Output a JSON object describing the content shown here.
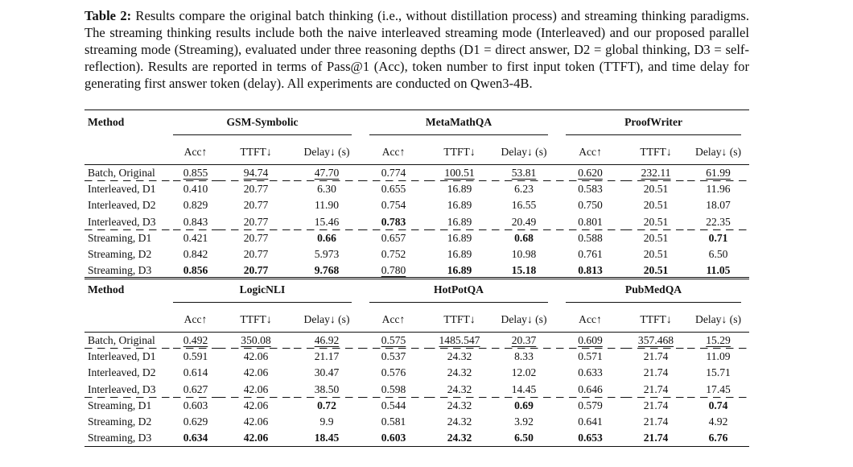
{
  "caption": {
    "label": "Table 2:",
    "text": " Results compare the original batch thinking (i.e., without distillation process) and streaming thinking paradigms. The streaming thinking results include both the naive interleaved streaming mode (Interleaved) and our proposed parallel streaming mode (Streaming), evaluated under three reasoning depths (D1 = direct answer, D2 = global thinking, D3 = self-reflection). Results are reported in terms of Pass@1 (Acc), token number to first input token (TTFT), and time delay for generating first answer token (delay). All experiments are conducted on Qwen3-4B."
  },
  "method_header": "Method",
  "metric_headers": [
    "Acc↑",
    "TTFT↓",
    "Delay↓ (s)"
  ],
  "tables": [
    {
      "datasets": [
        "GSM-Symbolic",
        "MetaMathQA",
        "ProofWriter"
      ],
      "rows": [
        {
          "method": "Batch, Original",
          "cells": [
            {
              "v": "0.855",
              "u": true
            },
            {
              "v": "94.74",
              "u": true
            },
            {
              "v": "47.70",
              "u": true
            },
            {
              "v": "0.774"
            },
            {
              "v": "100.51",
              "u": true
            },
            {
              "v": "53.81",
              "u": true
            },
            {
              "v": "0.620",
              "u": true
            },
            {
              "v": "232.11",
              "u": true
            },
            {
              "v": "61.99",
              "u": true
            }
          ]
        },
        {
          "method": "Interleaved, D1",
          "cells": [
            {
              "v": "0.410"
            },
            {
              "v": "20.77"
            },
            {
              "v": "6.30"
            },
            {
              "v": "0.655"
            },
            {
              "v": "16.89"
            },
            {
              "v": "6.23"
            },
            {
              "v": "0.583"
            },
            {
              "v": "20.51"
            },
            {
              "v": "11.96"
            }
          ]
        },
        {
          "method": "Interleaved, D2",
          "cells": [
            {
              "v": "0.829"
            },
            {
              "v": "20.77"
            },
            {
              "v": "11.90"
            },
            {
              "v": "0.754"
            },
            {
              "v": "16.89"
            },
            {
              "v": "16.55"
            },
            {
              "v": "0.750"
            },
            {
              "v": "20.51"
            },
            {
              "v": "18.07"
            }
          ]
        },
        {
          "method": "Interleaved, D3",
          "cells": [
            {
              "v": "0.843"
            },
            {
              "v": "20.77"
            },
            {
              "v": "15.46"
            },
            {
              "v": "0.783",
              "b": true
            },
            {
              "v": "16.89"
            },
            {
              "v": "20.49"
            },
            {
              "v": "0.801"
            },
            {
              "v": "20.51"
            },
            {
              "v": "22.35"
            }
          ]
        },
        {
          "method": "Streaming, D1",
          "cells": [
            {
              "v": "0.421"
            },
            {
              "v": "20.77"
            },
            {
              "v": "0.66",
              "b": true
            },
            {
              "v": "0.657"
            },
            {
              "v": "16.89"
            },
            {
              "v": "0.68",
              "b": true
            },
            {
              "v": "0.588"
            },
            {
              "v": "20.51"
            },
            {
              "v": "0.71",
              "b": true
            }
          ]
        },
        {
          "method": "Streaming, D2",
          "cells": [
            {
              "v": "0.842"
            },
            {
              "v": "20.77"
            },
            {
              "v": "5.973"
            },
            {
              "v": "0.752"
            },
            {
              "v": "16.89"
            },
            {
              "v": "10.98"
            },
            {
              "v": "0.761"
            },
            {
              "v": "20.51"
            },
            {
              "v": "6.50"
            }
          ]
        },
        {
          "method": "Streaming, D3",
          "cells": [
            {
              "v": "0.856",
              "b": true
            },
            {
              "v": "20.77",
              "b": true
            },
            {
              "v": "9.768",
              "b": true
            },
            {
              "v": "0.780",
              "u": true
            },
            {
              "v": "16.89",
              "b": true
            },
            {
              "v": "15.18",
              "b": true
            },
            {
              "v": "0.813",
              "b": true
            },
            {
              "v": "20.51",
              "b": true
            },
            {
              "v": "11.05",
              "b": true
            }
          ]
        }
      ]
    },
    {
      "datasets": [
        "LogicNLI",
        "HotPotQA",
        "PubMedQA"
      ],
      "rows": [
        {
          "method": "Batch, Original",
          "cells": [
            {
              "v": "0.492",
              "u": true
            },
            {
              "v": "350.08",
              "u": true
            },
            {
              "v": "46.92",
              "u": true
            },
            {
              "v": "0.575",
              "u": true
            },
            {
              "v": "1485.547",
              "u": true
            },
            {
              "v": "20.37",
              "u": true
            },
            {
              "v": "0.609",
              "u": true
            },
            {
              "v": "357.468",
              "u": true
            },
            {
              "v": "15.29",
              "u": true
            }
          ]
        },
        {
          "method": "Interleaved, D1",
          "cells": [
            {
              "v": "0.591"
            },
            {
              "v": "42.06"
            },
            {
              "v": "21.17"
            },
            {
              "v": "0.537"
            },
            {
              "v": "24.32"
            },
            {
              "v": "8.33"
            },
            {
              "v": "0.571"
            },
            {
              "v": "21.74"
            },
            {
              "v": "11.09"
            }
          ]
        },
        {
          "method": "Interleaved, D2",
          "cells": [
            {
              "v": "0.614"
            },
            {
              "v": "42.06"
            },
            {
              "v": "30.47"
            },
            {
              "v": "0.576"
            },
            {
              "v": "24.32"
            },
            {
              "v": "12.02"
            },
            {
              "v": "0.633"
            },
            {
              "v": "21.74"
            },
            {
              "v": "15.71"
            }
          ]
        },
        {
          "method": "Interleaved, D3",
          "cells": [
            {
              "v": "0.627"
            },
            {
              "v": "42.06"
            },
            {
              "v": "38.50"
            },
            {
              "v": "0.598"
            },
            {
              "v": "24.32"
            },
            {
              "v": "14.45"
            },
            {
              "v": "0.646"
            },
            {
              "v": "21.74"
            },
            {
              "v": "17.45"
            }
          ]
        },
        {
          "method": "Streaming, D1",
          "cells": [
            {
              "v": "0.603"
            },
            {
              "v": "42.06"
            },
            {
              "v": "0.72",
              "b": true
            },
            {
              "v": "0.544"
            },
            {
              "v": "24.32"
            },
            {
              "v": "0.69",
              "b": true
            },
            {
              "v": "0.579"
            },
            {
              "v": "21.74"
            },
            {
              "v": "0.74",
              "b": true
            }
          ]
        },
        {
          "method": "Streaming, D2",
          "cells": [
            {
              "v": "0.629"
            },
            {
              "v": "42.06"
            },
            {
              "v": "9.9"
            },
            {
              "v": "0.581"
            },
            {
              "v": "24.32"
            },
            {
              "v": "3.92"
            },
            {
              "v": "0.641"
            },
            {
              "v": "21.74"
            },
            {
              "v": "4.92"
            }
          ]
        },
        {
          "method": "Streaming, D3",
          "cells": [
            {
              "v": "0.634",
              "b": true
            },
            {
              "v": "42.06",
              "b": true
            },
            {
              "v": "18.45",
              "b": true
            },
            {
              "v": "0.603",
              "b": true
            },
            {
              "v": "24.32",
              "b": true
            },
            {
              "v": "6.50",
              "b": true
            },
            {
              "v": "0.653",
              "b": true
            },
            {
              "v": "21.74",
              "b": true
            },
            {
              "v": "6.76",
              "b": true
            }
          ]
        }
      ]
    }
  ]
}
